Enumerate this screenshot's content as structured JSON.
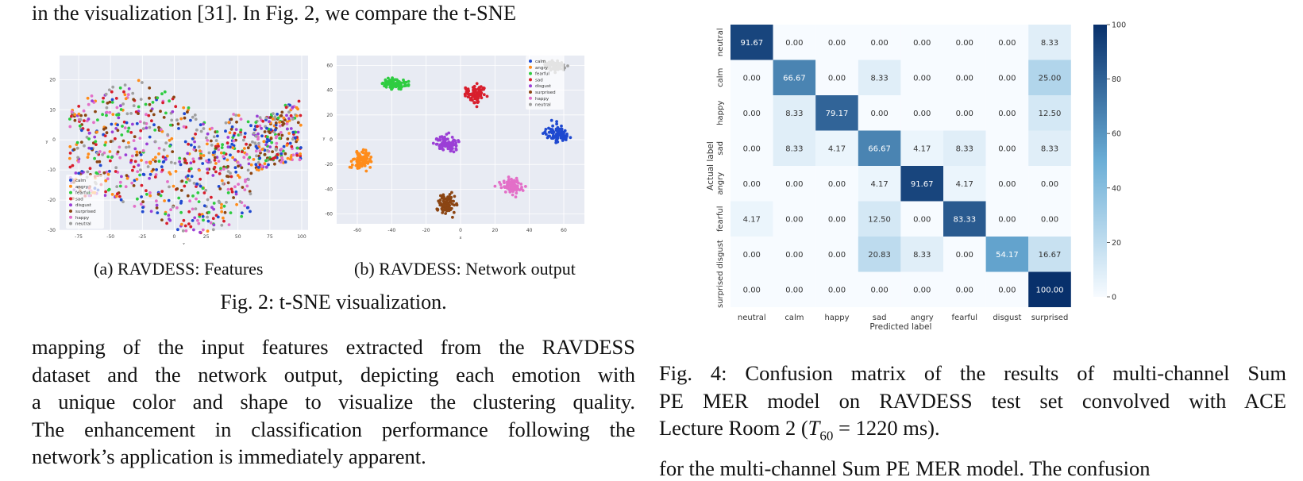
{
  "text": {
    "top_line": "in the visualization [31].  In Fig. 2, we compare the t-SNE",
    "body_lines": [
      "mapping of the input features extracted from the RAVDESS",
      "dataset and the network output, depicting each emotion with",
      "a unique color and shape to visualize the clustering quality.",
      "The enhancement in classification performance following the",
      "network’s application is immediately apparent."
    ],
    "fig2_sub_a": "(a) RAVDESS: Features",
    "fig2_sub_b": "(b) RAVDESS: Network output",
    "fig2_caption": "Fig. 2: t-SNE visualization.",
    "fig4_caption_1": "Fig. 4: Confusion matrix of the results of multi-channel Sum",
    "fig4_caption_2": "PE MER model on RAVDESS test set convolved with ACE",
    "fig4_caption_3a": "Lecture Room 2 (",
    "fig4_caption_math_T": "T",
    "fig4_caption_math_sub": "60",
    "fig4_caption_math_eq": " = 1220",
    "fig4_caption_3b": " ms).",
    "next_col_fragment": "for the multi-channel Sum PE MER model. The confusion"
  },
  "colors": {
    "calm": "#1f49d0",
    "angry": "#ff8c1a",
    "fearful": "#2ecc40",
    "sad": "#d81e2c",
    "disgust": "#9b3fd6",
    "surprised": "#8b4513",
    "happy": "#e36fc8",
    "neutral": "#a0a0a0",
    "plot_bg": "#e8ebf3",
    "cm_low": "#f7fbff",
    "cm_high": "#08306b"
  },
  "chart_data": [
    {
      "type": "scatter",
      "title": "",
      "xlabel": "x",
      "ylabel": "y",
      "xlim": [
        -90,
        105
      ],
      "ylim": [
        -30,
        28
      ],
      "xticks": [
        -75,
        -50,
        -25,
        0,
        25,
        50,
        75,
        100
      ],
      "yticks": [
        20,
        10,
        0,
        -10,
        -20,
        -30
      ],
      "legend_position": "bottom-left",
      "series": [
        {
          "name": "calm"
        },
        {
          "name": "angry"
        },
        {
          "name": "fearful"
        },
        {
          "name": "sad"
        },
        {
          "name": "disgust"
        },
        {
          "name": "surprised"
        },
        {
          "name": "happy"
        },
        {
          "name": "neutral"
        }
      ],
      "note_values": "scattered mixed point cloud"
    },
    {
      "type": "scatter",
      "title": "",
      "xlabel": "x",
      "ylabel": "y",
      "xlim": [
        -72,
        72
      ],
      "ylim": [
        -68,
        68
      ],
      "xticks": [
        -60,
        -40,
        -20,
        0,
        20,
        40,
        60
      ],
      "yticks": [
        60,
        40,
        20,
        0,
        -20,
        -40,
        -60
      ],
      "legend_position": "top-right",
      "series": [
        {
          "name": "calm",
          "center": [
            56,
            5
          ]
        },
        {
          "name": "angry",
          "center": [
            -57,
            -17
          ]
        },
        {
          "name": "fearful",
          "center": [
            -38,
            45
          ]
        },
        {
          "name": "sad",
          "center": [
            8,
            37
          ]
        },
        {
          "name": "disgust",
          "center": [
            -8,
            -3
          ]
        },
        {
          "name": "surprised",
          "center": [
            -8,
            -52
          ]
        },
        {
          "name": "happy",
          "center": [
            30,
            -38
          ]
        },
        {
          "name": "neutral",
          "center": [
            55,
            60
          ]
        }
      ]
    },
    {
      "type": "heatmap",
      "xlabel": "Predicted label",
      "ylabel": "Actual label",
      "labels": [
        "neutral",
        "calm",
        "happy",
        "sad",
        "angry",
        "fearful",
        "disgust",
        "surprised"
      ],
      "matrix": [
        [
          91.67,
          0.0,
          0.0,
          0.0,
          0.0,
          0.0,
          0.0,
          8.33
        ],
        [
          0.0,
          66.67,
          0.0,
          8.33,
          0.0,
          0.0,
          0.0,
          25.0
        ],
        [
          0.0,
          8.33,
          79.17,
          0.0,
          0.0,
          0.0,
          0.0,
          12.5
        ],
        [
          0.0,
          8.33,
          4.17,
          66.67,
          4.17,
          8.33,
          0.0,
          8.33
        ],
        [
          0.0,
          0.0,
          0.0,
          4.17,
          91.67,
          4.17,
          0.0,
          0.0
        ],
        [
          4.17,
          0.0,
          0.0,
          12.5,
          0.0,
          83.33,
          0.0,
          0.0
        ],
        [
          0.0,
          0.0,
          0.0,
          20.83,
          8.33,
          0.0,
          54.17,
          16.67
        ],
        [
          0.0,
          0.0,
          0.0,
          0.0,
          0.0,
          0.0,
          0.0,
          100.0
        ]
      ],
      "colorbar_ticks": [
        100,
        80,
        60,
        40,
        20,
        0
      ],
      "vmin": 0,
      "vmax": 100
    }
  ]
}
